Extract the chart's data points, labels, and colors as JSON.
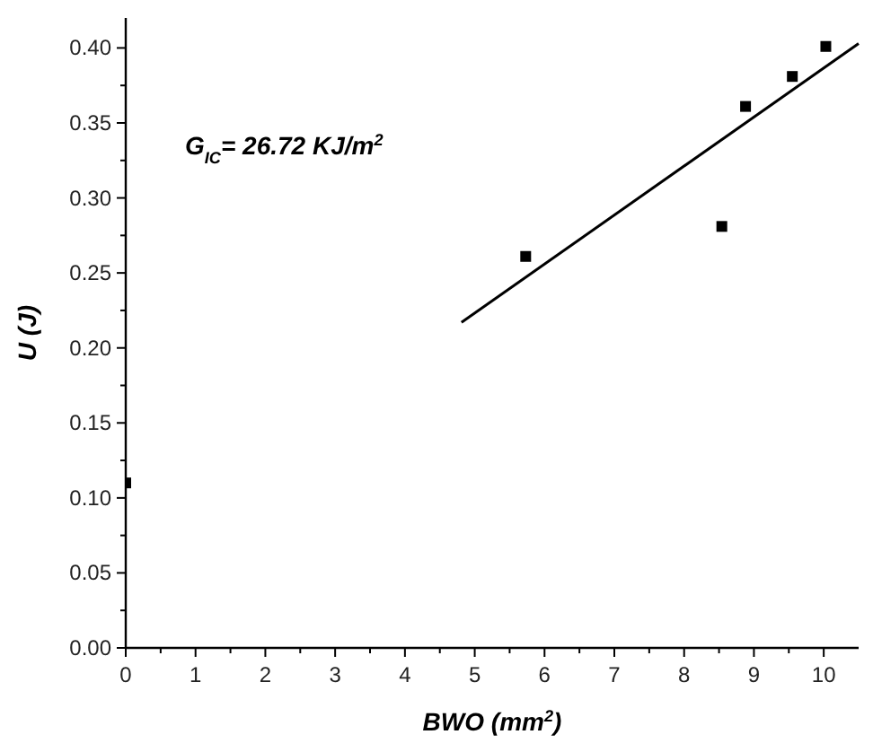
{
  "chart_data": {
    "type": "scatter",
    "xlabel": "BWO (mm$^{2}$)",
    "ylabel": "U (J)",
    "annotations": [
      "G$_{IC}$= 26.72 KJ/m$^{2}$"
    ],
    "xlim": [
      0,
      10.5
    ],
    "ylim": [
      0,
      0.42
    ],
    "xticks": [
      0,
      {
        "value": 0.5,
        "label": null
      },
      1,
      {
        "value": 1.5,
        "label": null
      },
      2,
      {
        "value": 2.5,
        "label": null
      },
      3,
      {
        "value": 3.5,
        "label": null
      },
      4,
      {
        "value": 4.5,
        "label": null
      },
      5,
      {
        "value": 5.5,
        "label": null
      },
      6,
      {
        "value": 6.5,
        "label": null
      },
      7,
      {
        "value": 7.5,
        "label": null
      },
      8,
      {
        "value": 8.5,
        "label": null
      },
      9,
      {
        "value": 9.5,
        "label": null
      },
      10
    ],
    "yticks": [
      {
        "value": 0,
        "label": "0.00"
      },
      {
        "value": 0.025,
        "label": null
      },
      0.05,
      {
        "value": 0.075,
        "label": null
      },
      {
        "value": 0.1,
        "label": "0.10"
      },
      {
        "value": 0.125,
        "label": null
      },
      0.15,
      {
        "value": 0.175,
        "label": null
      },
      {
        "value": 0.2,
        "label": "0.20"
      },
      {
        "value": 0.225,
        "label": null
      },
      0.25,
      {
        "value": 0.275,
        "label": null
      },
      {
        "value": 0.3,
        "label": "0.30"
      },
      {
        "value": 0.325,
        "label": null
      },
      0.35,
      {
        "value": 0.375,
        "label": null
      },
      {
        "value": 0.4,
        "label": "0.40"
      }
    ],
    "grid": false,
    "series": [
      {
        "marker": "square",
        "color": "#000000",
        "x": [
          0,
          5.73,
          8.54,
          8.88,
          9.55,
          10.03
        ],
        "values": [
          0.11,
          0.261,
          0.281,
          0.361,
          0.381,
          0.401
        ]
      },
      {
        "type": "line",
        "marker": "none",
        "line_style": "solid",
        "color": "#000000",
        "x": [
          4.81,
          10.5
        ],
        "values": [
          0.217,
          0.403
        ]
      }
    ]
  }
}
